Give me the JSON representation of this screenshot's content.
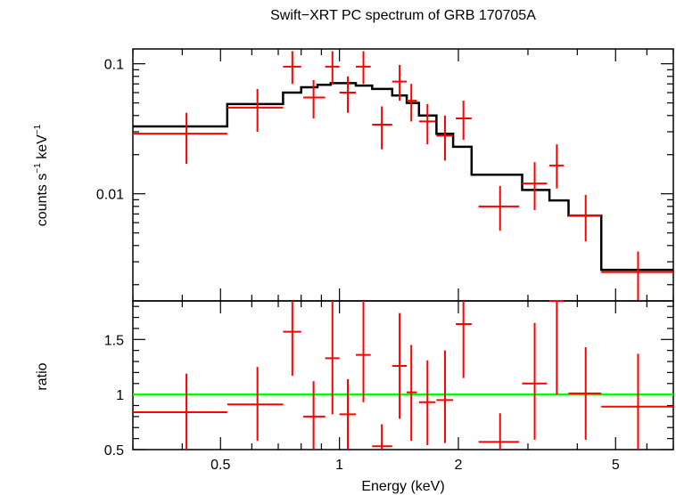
{
  "chart_data": {
    "type": "scatter",
    "title": "Swift−XRT PC spectrum of GRB 170705A",
    "xlabel": "Energy (keV)",
    "xscale": "log",
    "xlim": [
      0.3,
      7.0
    ],
    "x_ticks": [
      {
        "value": 0.5,
        "label": "0.5"
      },
      {
        "value": 1,
        "label": "1"
      },
      {
        "value": 2,
        "label": "2"
      },
      {
        "value": 5,
        "label": "5"
      }
    ],
    "colors": {
      "data": "#ff0000",
      "model": "#000000",
      "ratio_line": "#00ff00"
    },
    "panels": [
      {
        "name": "spectrum",
        "ylabel_parts": {
          "main": "counts s",
          "exp1": "−1",
          "mid": " keV",
          "exp2": "−1"
        },
        "yscale": "log",
        "ylim": [
          0.0015,
          0.13
        ],
        "y_ticks": [
          {
            "value": 0.1,
            "label": "0.1"
          },
          {
            "value": 0.01,
            "label": "0.01"
          }
        ],
        "points": [
          {
            "x": 0.41,
            "xlo": 0.3,
            "xhi": 0.52,
            "y": 0.029,
            "ylo": 0.017,
            "yhi": 0.042
          },
          {
            "x": 0.62,
            "xlo": 0.52,
            "xhi": 0.72,
            "y": 0.046,
            "ylo": 0.03,
            "yhi": 0.064
          },
          {
            "x": 0.76,
            "xlo": 0.72,
            "xhi": 0.8,
            "y": 0.095,
            "ylo": 0.07,
            "yhi": 0.125
          },
          {
            "x": 0.86,
            "xlo": 0.81,
            "xhi": 0.92,
            "y": 0.055,
            "ylo": 0.038,
            "yhi": 0.075
          },
          {
            "x": 0.96,
            "xlo": 0.92,
            "xhi": 1.0,
            "y": 0.095,
            "ylo": 0.07,
            "yhi": 0.125
          },
          {
            "x": 1.05,
            "xlo": 1.0,
            "xhi": 1.1,
            "y": 0.06,
            "ylo": 0.042,
            "yhi": 0.08
          },
          {
            "x": 1.15,
            "xlo": 1.1,
            "xhi": 1.2,
            "y": 0.095,
            "ylo": 0.07,
            "yhi": 0.125
          },
          {
            "x": 1.28,
            "xlo": 1.21,
            "xhi": 1.36,
            "y": 0.034,
            "ylo": 0.022,
            "yhi": 0.047
          },
          {
            "x": 1.42,
            "xlo": 1.36,
            "xhi": 1.48,
            "y": 0.073,
            "ylo": 0.052,
            "yhi": 0.098
          },
          {
            "x": 1.52,
            "xlo": 1.48,
            "xhi": 1.57,
            "y": 0.052,
            "ylo": 0.036,
            "yhi": 0.07
          },
          {
            "x": 1.67,
            "xlo": 1.59,
            "xhi": 1.75,
            "y": 0.036,
            "ylo": 0.024,
            "yhi": 0.049
          },
          {
            "x": 1.85,
            "xlo": 1.76,
            "xhi": 1.94,
            "y": 0.028,
            "ylo": 0.018,
            "yhi": 0.04
          },
          {
            "x": 2.06,
            "xlo": 1.97,
            "xhi": 2.16,
            "y": 0.038,
            "ylo": 0.026,
            "yhi": 0.052
          },
          {
            "x": 2.55,
            "xlo": 2.25,
            "xhi": 2.85,
            "y": 0.008,
            "ylo": 0.0052,
            "yhi": 0.0115
          },
          {
            "x": 3.12,
            "xlo": 2.9,
            "xhi": 3.35,
            "y": 0.012,
            "ylo": 0.0075,
            "yhi": 0.0175
          },
          {
            "x": 3.55,
            "xlo": 3.4,
            "xhi": 3.7,
            "y": 0.0165,
            "ylo": 0.011,
            "yhi": 0.024
          },
          {
            "x": 4.2,
            "xlo": 3.8,
            "xhi": 4.6,
            "y": 0.0068,
            "ylo": 0.0043,
            "yhi": 0.0098
          },
          {
            "x": 5.7,
            "xlo": 4.6,
            "xhi": 7.0,
            "y": 0.0025,
            "ylo": 0.0015,
            "yhi": 0.0036
          }
        ],
        "model_steps": [
          {
            "x0": 0.3,
            "x1": 0.52,
            "y": 0.033
          },
          {
            "x0": 0.52,
            "x1": 0.72,
            "y": 0.049
          },
          {
            "x0": 0.72,
            "x1": 0.8,
            "y": 0.06
          },
          {
            "x0": 0.8,
            "x1": 0.88,
            "y": 0.066
          },
          {
            "x0": 0.88,
            "x1": 0.95,
            "y": 0.069
          },
          {
            "x0": 0.95,
            "x1": 1.1,
            "y": 0.071
          },
          {
            "x0": 1.1,
            "x1": 1.21,
            "y": 0.068
          },
          {
            "x0": 1.21,
            "x1": 1.36,
            "y": 0.064
          },
          {
            "x0": 1.36,
            "x1": 1.48,
            "y": 0.057
          },
          {
            "x0": 1.48,
            "x1": 1.59,
            "y": 0.05
          },
          {
            "x0": 1.59,
            "x1": 1.76,
            "y": 0.04
          },
          {
            "x0": 1.76,
            "x1": 1.94,
            "y": 0.029
          },
          {
            "x0": 1.94,
            "x1": 2.16,
            "y": 0.023
          },
          {
            "x0": 2.16,
            "x1": 2.9,
            "y": 0.014
          },
          {
            "x0": 2.9,
            "x1": 3.4,
            "y": 0.0107
          },
          {
            "x0": 3.4,
            "x1": 3.8,
            "y": 0.0089
          },
          {
            "x0": 3.8,
            "x1": 4.6,
            "y": 0.0068
          },
          {
            "x0": 4.6,
            "x1": 7.0,
            "y": 0.0026
          }
        ]
      },
      {
        "name": "ratio",
        "ylabel": "ratio",
        "yscale": "linear",
        "ylim": [
          0.5,
          1.85
        ],
        "y_ticks": [
          {
            "value": 0.5,
            "label": "0.5"
          },
          {
            "value": 1,
            "label": "1"
          },
          {
            "value": 1.5,
            "label": "1.5"
          }
        ],
        "reference_line": 1.0,
        "points": [
          {
            "x": 0.41,
            "xlo": 0.3,
            "xhi": 0.52,
            "y": 0.84,
            "ylo": 0.5,
            "yhi": 1.19
          },
          {
            "x": 0.62,
            "xlo": 0.52,
            "xhi": 0.72,
            "y": 0.91,
            "ylo": 0.58,
            "yhi": 1.25
          },
          {
            "x": 0.76,
            "xlo": 0.72,
            "xhi": 0.8,
            "y": 1.57,
            "ylo": 1.17,
            "yhi": 1.85
          },
          {
            "x": 0.86,
            "xlo": 0.81,
            "xhi": 0.92,
            "y": 0.8,
            "ylo": 0.5,
            "yhi": 1.12
          },
          {
            "x": 0.96,
            "xlo": 0.92,
            "xhi": 1.0,
            "y": 1.33,
            "ylo": 0.82,
            "yhi": 1.85
          },
          {
            "x": 1.05,
            "xlo": 1.0,
            "xhi": 1.1,
            "y": 0.82,
            "ylo": 0.5,
            "yhi": 1.14
          },
          {
            "x": 1.15,
            "xlo": 1.1,
            "xhi": 1.2,
            "y": 1.36,
            "ylo": 0.93,
            "yhi": 1.85
          },
          {
            "x": 1.28,
            "xlo": 1.21,
            "xhi": 1.36,
            "y": 0.53,
            "ylo": 0.5,
            "yhi": 0.73
          },
          {
            "x": 1.42,
            "xlo": 1.36,
            "xhi": 1.48,
            "y": 1.26,
            "ylo": 0.78,
            "yhi": 1.74
          },
          {
            "x": 1.52,
            "xlo": 1.48,
            "xhi": 1.57,
            "y": 1.02,
            "ylo": 0.58,
            "yhi": 1.45
          },
          {
            "x": 1.67,
            "xlo": 1.59,
            "xhi": 1.75,
            "y": 0.93,
            "ylo": 0.54,
            "yhi": 1.31
          },
          {
            "x": 1.85,
            "xlo": 1.76,
            "xhi": 1.94,
            "y": 0.95,
            "ylo": 0.56,
            "yhi": 1.4
          },
          {
            "x": 2.06,
            "xlo": 1.97,
            "xhi": 2.16,
            "y": 1.64,
            "ylo": 1.15,
            "yhi": 1.85
          },
          {
            "x": 2.55,
            "xlo": 2.25,
            "xhi": 2.85,
            "y": 0.57,
            "ylo": 0.5,
            "yhi": 0.83
          },
          {
            "x": 3.12,
            "xlo": 2.9,
            "xhi": 3.35,
            "y": 1.1,
            "ylo": 0.59,
            "yhi": 1.65
          },
          {
            "x": 3.55,
            "xlo": 3.4,
            "xhi": 3.7,
            "y": 1.85,
            "ylo": 1.0,
            "yhi": 1.85
          },
          {
            "x": 4.2,
            "xlo": 3.8,
            "xhi": 4.6,
            "y": 1.01,
            "ylo": 0.59,
            "yhi": 1.43
          },
          {
            "x": 5.7,
            "xlo": 4.6,
            "xhi": 7.0,
            "y": 0.89,
            "ylo": 0.5,
            "yhi": 1.37
          }
        ]
      }
    ]
  }
}
